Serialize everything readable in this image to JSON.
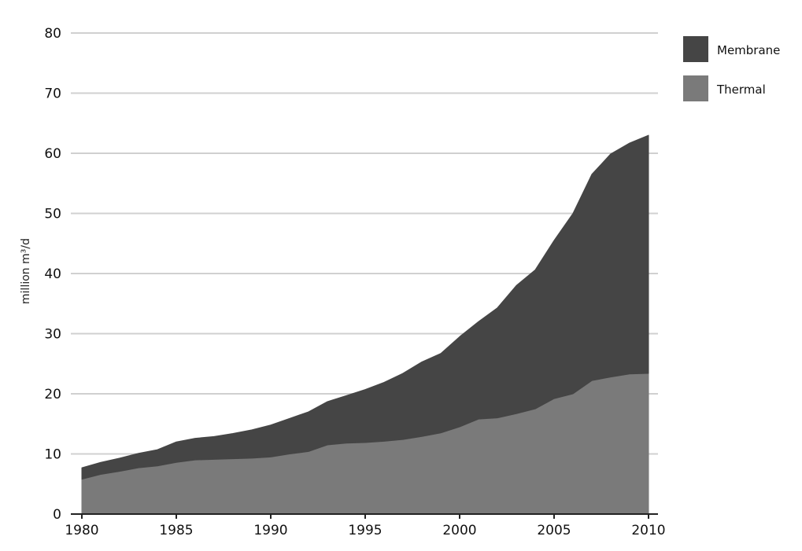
{
  "chart_data": {
    "type": "area",
    "stacked": true,
    "ylabel": "million m³/d",
    "xlabel": "",
    "xlim": [
      1980,
      2010
    ],
    "ylim": [
      0,
      80
    ],
    "x_ticks": [
      1980,
      1985,
      1990,
      1995,
      2000,
      2005,
      2010
    ],
    "y_ticks": [
      0,
      10,
      20,
      30,
      40,
      50,
      60,
      70,
      80
    ],
    "grid": "horizontal",
    "legend_position": "top-right",
    "x": [
      1980,
      1981,
      1982,
      1983,
      1984,
      1985,
      1986,
      1987,
      1988,
      1989,
      1990,
      1991,
      1992,
      1993,
      1994,
      1995,
      1996,
      1997,
      1998,
      1999,
      2000,
      2001,
      2002,
      2003,
      2004,
      2005,
      2006,
      2007,
      2008,
      2009,
      2010
    ],
    "series": [
      {
        "name": "Thermal",
        "color": "#7a7a7a",
        "values": [
          5.8,
          6.6,
          7.1,
          7.7,
          8.0,
          8.6,
          9.0,
          9.1,
          9.2,
          9.3,
          9.5,
          10.0,
          10.4,
          11.5,
          11.8,
          11.9,
          12.1,
          12.4,
          12.9,
          13.5,
          14.5,
          15.8,
          16.0,
          16.7,
          17.5,
          19.2,
          20.0,
          22.2,
          22.8,
          23.3,
          23.4
        ],
        "description": "lower band"
      },
      {
        "name": "Membrane",
        "color": "#454545",
        "values": [
          1.9,
          2.0,
          2.2,
          2.4,
          2.7,
          3.4,
          3.6,
          3.8,
          4.2,
          4.7,
          5.3,
          5.9,
          6.6,
          7.2,
          7.9,
          8.8,
          9.8,
          11.0,
          12.4,
          13.2,
          15.0,
          16.2,
          18.3,
          21.3,
          23.1,
          26.3,
          30.0,
          34.3,
          37.1,
          38.4,
          39.6
        ],
        "description": "upper band"
      }
    ]
  },
  "legend": {
    "items": [
      {
        "label": "Membrane",
        "color": "#454545"
      },
      {
        "label": "Thermal",
        "color": "#7a7a7a"
      }
    ]
  },
  "colors": {
    "grid": "#d0d0d0",
    "axis": "#222222"
  }
}
